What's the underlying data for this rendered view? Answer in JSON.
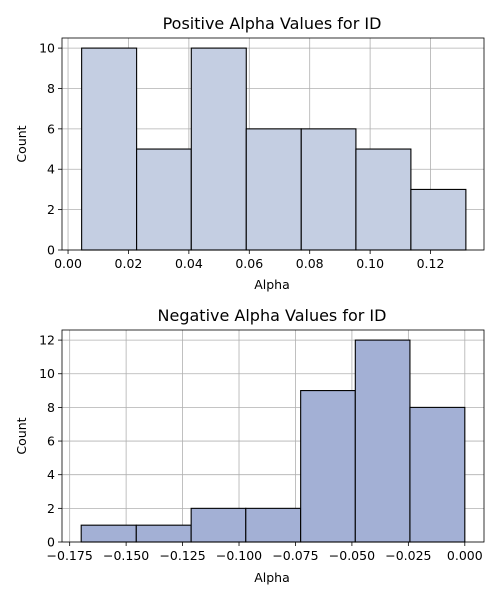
{
  "chart_data": [
    {
      "type": "bar",
      "title": "Positive Alpha Values for ID",
      "xlabel": "Alpha",
      "ylabel": "Count",
      "bin_edges": [
        0.0045,
        0.0227,
        0.0408,
        0.059,
        0.0772,
        0.0953,
        0.1135,
        0.1317
      ],
      "values": [
        10,
        5,
        10,
        6,
        6,
        5,
        3
      ],
      "xlim": [
        -0.002,
        0.1377
      ],
      "ylim": [
        0,
        10.5
      ],
      "xticks": [
        0.0,
        0.02,
        0.04,
        0.06,
        0.08,
        0.1,
        0.12
      ],
      "xtick_labels": [
        "0.00",
        "0.02",
        "0.04",
        "0.06",
        "0.08",
        "0.10",
        "0.12"
      ],
      "yticks": [
        0,
        2,
        4,
        6,
        8,
        10
      ],
      "ytick_labels": [
        "0",
        "2",
        "4",
        "6",
        "8",
        "10"
      ],
      "grid": true,
      "bar_color": "#c4cee2",
      "edge_color": "#000000"
    },
    {
      "type": "bar",
      "title": "Negative Alpha Values for ID",
      "xlabel": "Alpha",
      "ylabel": "Count",
      "bin_edges": [
        -0.1699,
        -0.1455,
        -0.1212,
        -0.097,
        -0.0727,
        -0.0485,
        -0.0243,
        0.0
      ],
      "values": [
        1,
        1,
        2,
        2,
        9,
        12,
        8
      ],
      "xlim": [
        -0.1784,
        0.0085
      ],
      "ylim": [
        0,
        12.6
      ],
      "xticks": [
        -0.175,
        -0.15,
        -0.125,
        -0.1,
        -0.075,
        -0.05,
        -0.025,
        0.0
      ],
      "xtick_labels": [
        "−0.175",
        "−0.150",
        "−0.125",
        "−0.100",
        "−0.075",
        "−0.050",
        "−0.025",
        "0.000"
      ],
      "yticks": [
        0,
        2,
        4,
        6,
        8,
        10,
        12
      ],
      "ytick_labels": [
        "0",
        "2",
        "4",
        "6",
        "8",
        "10",
        "12"
      ],
      "grid": true,
      "bar_color": "#a3b0d5",
      "edge_color": "#000000"
    }
  ]
}
